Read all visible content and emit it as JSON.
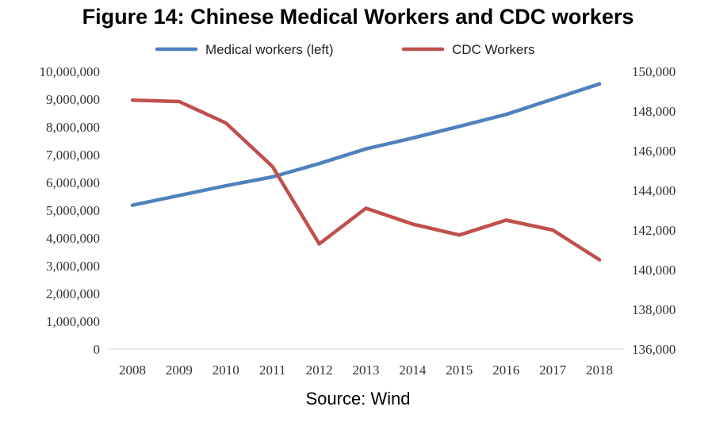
{
  "chart_data": {
    "type": "line",
    "title": "Figure 14: Chinese Medical Workers and CDC workers",
    "source": "Source: Wind",
    "x": [
      "2008",
      "2009",
      "2010",
      "2011",
      "2012",
      "2013",
      "2014",
      "2015",
      "2016",
      "2017",
      "2018"
    ],
    "y_left": {
      "min": 0,
      "max": 10000000,
      "step": 1000000,
      "tick_labels": [
        "0",
        "1,000,000",
        "2,000,000",
        "3,000,000",
        "4,000,000",
        "5,000,000",
        "6,000,000",
        "7,000,000",
        "8,000,000",
        "9,000,000",
        "10,000,000"
      ]
    },
    "y_right": {
      "min": 136000,
      "max": 150000,
      "step": 2000,
      "tick_labels": [
        "136,000",
        "138,000",
        "140,000",
        "142,000",
        "144,000",
        "146,000",
        "148,000",
        "150,000"
      ]
    },
    "series": [
      {
        "name": "Medical workers (left)",
        "axis": "left",
        "color": "#4f81bd",
        "values": [
          5180000,
          5530000,
          5880000,
          6200000,
          6680000,
          7210000,
          7600000,
          8020000,
          8450000,
          9000000,
          9550000
        ]
      },
      {
        "name": "CDC Workers",
        "axis": "right",
        "color": "#c0504d",
        "values": [
          148550,
          148480,
          147400,
          145200,
          141300,
          143100,
          142300,
          141750,
          142500,
          142000,
          140500
        ]
      }
    ],
    "legend_position": "top",
    "grid": false
  }
}
